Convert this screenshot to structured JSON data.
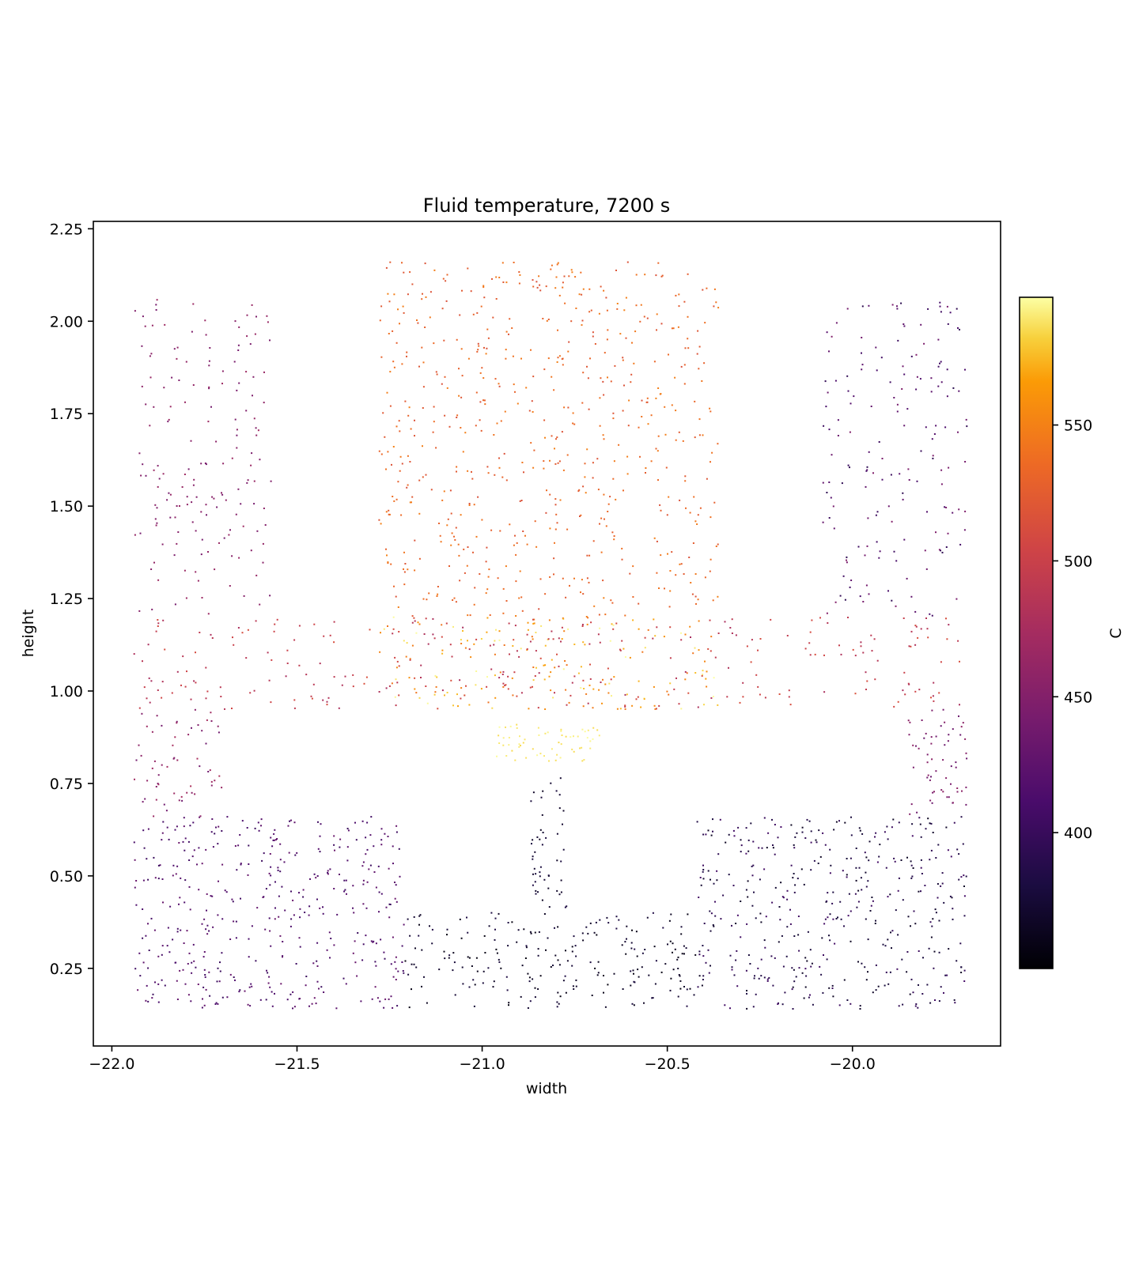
{
  "chart_data": {
    "type": "scatter",
    "title": "Fluid temperature, 7200 s",
    "xlabel": "width",
    "ylabel": "height",
    "xlim": [
      -22.05,
      -19.6
    ],
    "ylim": [
      0.04,
      2.27
    ],
    "x_ticks": [
      -22.0,
      -21.5,
      -21.0,
      -20.5,
      -20.0
    ],
    "x_tick_labels": [
      "−22.0",
      "−21.5",
      "−21.0",
      "−20.5",
      "−20.0"
    ],
    "y_ticks": [
      0.25,
      0.5,
      0.75,
      1.0,
      1.25,
      1.5,
      1.75,
      2.0,
      2.25
    ],
    "y_tick_labels": [
      "0.25",
      "0.50",
      "0.75",
      "1.00",
      "1.25",
      "1.50",
      "1.75",
      "2.00",
      "2.25"
    ],
    "grid": false,
    "colormap": "inferno",
    "colorbar": {
      "label": "C",
      "range": [
        350,
        597
      ],
      "ticks": [
        400,
        450,
        500,
        550
      ],
      "tick_labels": [
        "400",
        "450",
        "500",
        "550"
      ]
    },
    "marker_size": "small dots",
    "regions": [
      {
        "name": "left column upper",
        "x": [
          -21.94,
          -21.57
        ],
        "y": [
          1.2,
          2.06
        ],
        "temp": [
          440,
          470
        ],
        "count": 170
      },
      {
        "name": "left column lower",
        "x": [
          -21.94,
          -21.7
        ],
        "y": [
          0.66,
          0.95
        ],
        "temp": [
          435,
          480
        ],
        "count": 60
      },
      {
        "name": "left bottom block",
        "x": [
          -21.94,
          -21.21
        ],
        "y": [
          0.14,
          0.66
        ],
        "temp": [
          400,
          435
        ],
        "count": 420
      },
      {
        "name": "center top block",
        "x": [
          -21.28,
          -20.36
        ],
        "y": [
          1.2,
          2.16
        ],
        "temp": [
          515,
          550
        ],
        "count": 620
      },
      {
        "name": "center middle",
        "x": [
          -21.28,
          -20.36
        ],
        "y": [
          0.95,
          1.2
        ],
        "temp": [
          540,
          597
        ],
        "count": 180
      },
      {
        "name": "horizontal band",
        "x": [
          -21.94,
          -19.69
        ],
        "y": [
          0.95,
          1.2
        ],
        "temp": [
          475,
          515
        ],
        "count": 300
      },
      {
        "name": "hot neck",
        "x": [
          -20.97,
          -20.68
        ],
        "y": [
          0.81,
          0.91
        ],
        "temp": [
          585,
          597
        ],
        "count": 60
      },
      {
        "name": "center stem",
        "x": [
          -20.87,
          -20.77
        ],
        "y": [
          0.4,
          0.78
        ],
        "temp": [
          365,
          385
        ],
        "count": 50
      },
      {
        "name": "center bottom block",
        "x": [
          -21.21,
          -20.42
        ],
        "y": [
          0.14,
          0.4
        ],
        "temp": [
          355,
          385
        ],
        "count": 220
      },
      {
        "name": "right column upper",
        "x": [
          -20.08,
          -19.69
        ],
        "y": [
          1.2,
          2.06
        ],
        "temp": [
          390,
          450
        ],
        "count": 170
      },
      {
        "name": "right column lower",
        "x": [
          -19.85,
          -19.69
        ],
        "y": [
          0.66,
          0.95
        ],
        "temp": [
          430,
          460
        ],
        "count": 60
      },
      {
        "name": "right bottom block",
        "x": [
          -20.42,
          -19.69
        ],
        "y": [
          0.14,
          0.66
        ],
        "temp": [
          365,
          410
        ],
        "count": 420
      }
    ]
  }
}
